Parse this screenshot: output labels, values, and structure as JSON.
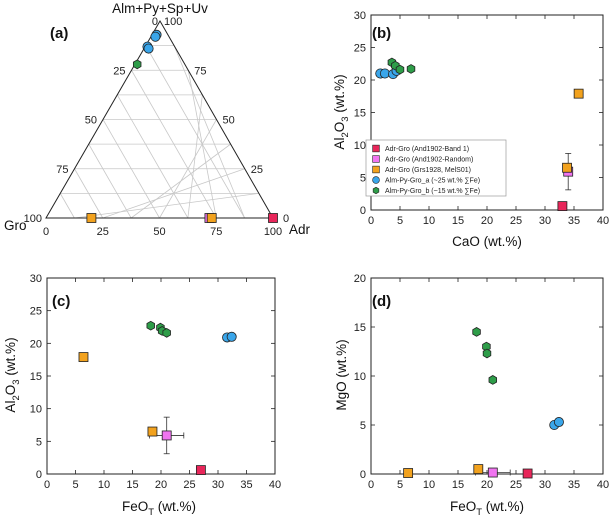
{
  "colors": {
    "band1": "#e8265a",
    "random": "#f074f0",
    "grs": "#f2a21e",
    "alm_a": "#3aa6ea",
    "alm_b": "#2e9d49",
    "edge": "#222222"
  },
  "chart_data": [
    {
      "panel": "(a)",
      "type": "ternary",
      "vertex_labels": {
        "top": "Alm+Py+Sp+Uv",
        "left": "Gro",
        "right": "Adr"
      },
      "left_axis_ticks": [
        "0",
        "25",
        "50",
        "75",
        "100"
      ],
      "right_axis_ticks": [
        "100",
        "75",
        "50",
        "25",
        "0"
      ],
      "bottom_axis_ticks": [
        "0",
        "25",
        "50",
        "75",
        "100"
      ],
      "series": [
        {
          "name": "Adr-Gro (And1902-Band 1)",
          "color": "band1",
          "marker": "square",
          "points": [
            {
              "almpysp": 0,
              "adr": 100,
              "gro": 0
            }
          ]
        },
        {
          "name": "Adr-Gro (And1902-Random)",
          "color": "random",
          "marker": "square",
          "points": [
            {
              "almpysp": 0,
              "adr": 72,
              "gro": 28
            }
          ]
        },
        {
          "name": "Adr-Gro (Grs1928, MelS01)",
          "color": "grs",
          "marker": "square",
          "points": [
            {
              "almpysp": 0,
              "adr": 20,
              "gro": 80
            },
            {
              "almpysp": 0,
              "adr": 73,
              "gro": 27
            }
          ]
        },
        {
          "name": "Alm-Py-Gro_a (~25 wt.% ∑Fe)",
          "color": "alm_a",
          "marker": "circle",
          "points": [
            {
              "almpysp": 93,
              "adr": 2,
              "gro": 5
            },
            {
              "almpysp": 92,
              "adr": 2,
              "gro": 6
            },
            {
              "almpysp": 87,
              "adr": 1,
              "gro": 12
            },
            {
              "almpysp": 86,
              "adr": 2,
              "gro": 12
            }
          ]
        },
        {
          "name": "Alm-Py-Gro_b (~15 wt.% ∑Fe)",
          "color": "alm_b",
          "marker": "hexagon",
          "points": [
            {
              "almpysp": 78,
              "adr": 1,
              "gro": 21
            }
          ]
        }
      ]
    },
    {
      "panel": "(b)",
      "type": "scatter",
      "xlabel": "CaO (wt.%)",
      "ylabel_main": "Al",
      "ylabel_sub1": "2",
      "ylabel_mid": "O",
      "ylabel_sub2": "3",
      "ylabel_end": " (wt.%)",
      "xlim": [
        0,
        40
      ],
      "ylim": [
        0,
        30
      ],
      "xticks": [
        0,
        5,
        10,
        15,
        20,
        25,
        30,
        35,
        40
      ],
      "yticks": [
        0,
        5,
        10,
        15,
        20,
        25,
        30
      ],
      "legend": {
        "position": "right",
        "entries": [
          {
            "label": "Adr-Gro (And1902-Band 1)",
            "color": "band1",
            "marker": "square"
          },
          {
            "label": "Adr-Gro (And1902-Random)",
            "color": "random",
            "marker": "square"
          },
          {
            "label": "Adr-Gro (Grs1928, MelS01)",
            "color": "grs",
            "marker": "square"
          },
          {
            "label": "Alm-Py-Gro_a (~25 wt.% ∑Fe)",
            "color": "alm_a",
            "marker": "circle"
          },
          {
            "label": "Alm-Py-Gro_b (~15 wt.% ∑Fe)",
            "color": "alm_b",
            "marker": "hexagon"
          }
        ]
      },
      "series": [
        {
          "name": "Adr-Gro (And1902-Band 1)",
          "color": "band1",
          "marker": "square",
          "points": [
            {
              "x": 33.0,
              "y": 0.6
            }
          ]
        },
        {
          "name": "Adr-Gro (And1902-Random)",
          "color": "random",
          "marker": "square",
          "points": [
            {
              "x": 34.0,
              "y": 5.9,
              "yerr": 2.8
            }
          ]
        },
        {
          "name": "Adr-Gro (Grs1928, MelS01)",
          "color": "grs",
          "marker": "square",
          "points": [
            {
              "x": 35.8,
              "y": 17.9
            },
            {
              "x": 33.8,
              "y": 6.5
            }
          ]
        },
        {
          "name": "Alm-Py-Gro_a (~25 wt.% ∑Fe)",
          "color": "alm_a",
          "marker": "circle",
          "points": [
            {
              "x": 1.6,
              "y": 21.0
            },
            {
              "x": 2.4,
              "y": 21.0
            },
            {
              "x": 3.8,
              "y": 20.9
            },
            {
              "x": 4.4,
              "y": 21.4
            }
          ]
        },
        {
          "name": "Alm-Py-Gro_b (~15 wt.% ∑Fe)",
          "color": "alm_b",
          "marker": "hexagon",
          "points": [
            {
              "x": 3.6,
              "y": 22.7
            },
            {
              "x": 4.2,
              "y": 22.2
            },
            {
              "x": 5.0,
              "y": 21.6
            },
            {
              "x": 6.9,
              "y": 21.7
            }
          ]
        }
      ]
    },
    {
      "panel": "(c)",
      "type": "scatter",
      "xlabel_main": "FeO",
      "xlabel_sub": "T",
      "xlabel_end": " (wt.%)",
      "ylabel_main": "Al",
      "ylabel_sub1": "2",
      "ylabel_mid": "O",
      "ylabel_sub2": "3",
      "ylabel_end": " (wt.%)",
      "xlim": [
        0,
        40
      ],
      "ylim": [
        0,
        30
      ],
      "xticks": [
        0,
        5,
        10,
        15,
        20,
        25,
        30,
        35,
        40
      ],
      "yticks": [
        0,
        5,
        10,
        15,
        20,
        25,
        30
      ],
      "series": [
        {
          "name": "Adr-Gro (And1902-Band 1)",
          "color": "band1",
          "marker": "square",
          "points": [
            {
              "x": 27.0,
              "y": 0.6
            }
          ]
        },
        {
          "name": "Adr-Gro (And1902-Random)",
          "color": "random",
          "marker": "square",
          "points": [
            {
              "x": 21.0,
              "y": 5.9,
              "xerr": 3.0,
              "yerr": 2.8
            }
          ]
        },
        {
          "name": "Adr-Gro (Grs1928, MelS01)",
          "color": "grs",
          "marker": "square",
          "points": [
            {
              "x": 6.4,
              "y": 17.9
            },
            {
              "x": 18.5,
              "y": 6.5
            }
          ]
        },
        {
          "name": "Alm-Py-Gro_a (~25 wt.% ∑Fe)",
          "color": "alm_a",
          "marker": "circle",
          "points": [
            {
              "x": 31.6,
              "y": 20.9
            },
            {
              "x": 32.4,
              "y": 21.0
            }
          ]
        },
        {
          "name": "Alm-Py-Gro_b (~15 wt.% ∑Fe)",
          "color": "alm_b",
          "marker": "hexagon",
          "points": [
            {
              "x": 18.2,
              "y": 22.7
            },
            {
              "x": 19.9,
              "y": 22.4
            },
            {
              "x": 20.2,
              "y": 21.9
            },
            {
              "x": 21.0,
              "y": 21.6
            }
          ]
        }
      ]
    },
    {
      "panel": "(d)",
      "type": "scatter",
      "xlabel_main": "FeO",
      "xlabel_sub": "T",
      "xlabel_end": " (wt.%)",
      "ylabel": "MgO (wt.%)",
      "xlim": [
        0,
        40
      ],
      "ylim": [
        0,
        20
      ],
      "xticks": [
        0,
        5,
        10,
        15,
        20,
        25,
        30,
        35,
        40
      ],
      "yticks": [
        0,
        5,
        10,
        15,
        20
      ],
      "series": [
        {
          "name": "Adr-Gro (And1902-Band 1)",
          "color": "band1",
          "marker": "square",
          "points": [
            {
              "x": 27.0,
              "y": 0.05
            }
          ]
        },
        {
          "name": "Adr-Gro (And1902-Random)",
          "color": "random",
          "marker": "square",
          "points": [
            {
              "x": 21.0,
              "y": 0.15,
              "xerr": 3.0
            }
          ]
        },
        {
          "name": "Adr-Gro (Grs1928, MelS01)",
          "color": "grs",
          "marker": "square",
          "points": [
            {
              "x": 6.4,
              "y": 0.1
            },
            {
              "x": 18.5,
              "y": 0.5
            }
          ]
        },
        {
          "name": "Alm-Py-Gro_a (~25 wt.% ∑Fe)",
          "color": "alm_a",
          "marker": "circle",
          "points": [
            {
              "x": 31.6,
              "y": 5.0
            },
            {
              "x": 32.4,
              "y": 5.3
            }
          ]
        },
        {
          "name": "Alm-Py-Gro_b (~15 wt.% ∑Fe)",
          "color": "alm_b",
          "marker": "hexagon",
          "points": [
            {
              "x": 18.2,
              "y": 14.5
            },
            {
              "x": 19.9,
              "y": 13.0
            },
            {
              "x": 20.0,
              "y": 12.3
            },
            {
              "x": 21.0,
              "y": 9.6
            }
          ]
        }
      ]
    }
  ]
}
